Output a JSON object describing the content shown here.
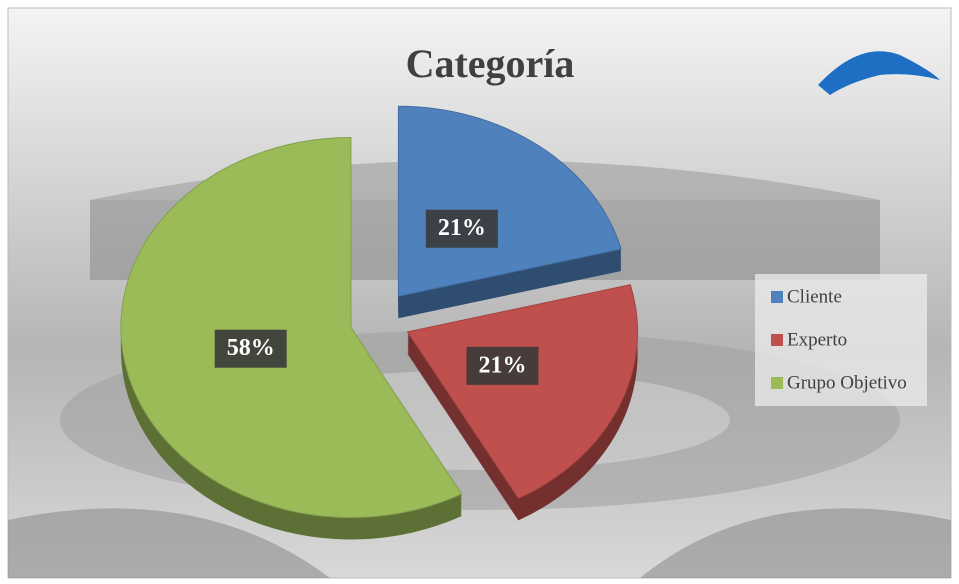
{
  "chart_data": {
    "type": "pie",
    "title": "Categoría",
    "categories": [
      "Cliente",
      "Experto",
      "Grupo Objetivo"
    ],
    "values": [
      21,
      21,
      58
    ],
    "value_labels": [
      "21%",
      "21%",
      "58%"
    ],
    "colors": [
      "#4f81bd",
      "#c0504d",
      "#9bbb59"
    ],
    "legend": "right"
  }
}
